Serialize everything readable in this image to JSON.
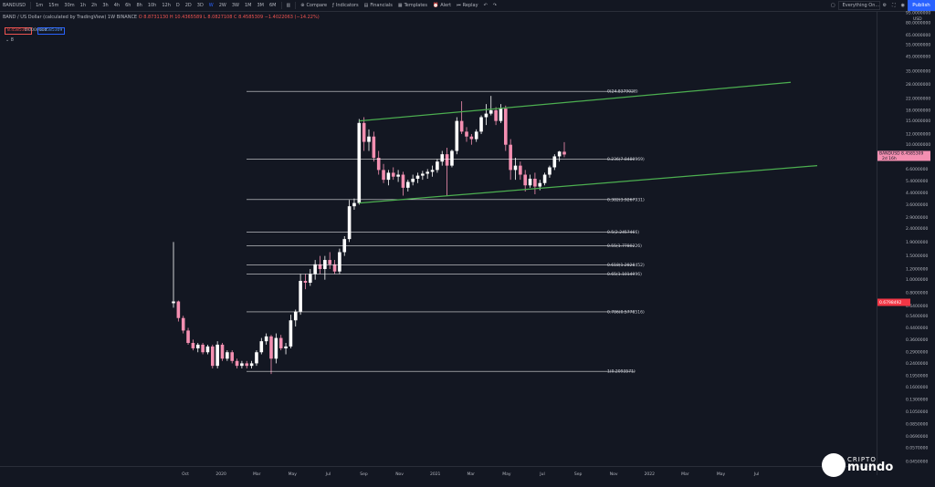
{
  "toolbar": {
    "symbol": "BANDUSD",
    "intervals": [
      "1m",
      "15m",
      "30m",
      "1h",
      "2h",
      "3h",
      "4h",
      "6h",
      "8h",
      "10h",
      "12h",
      "D",
      "2D",
      "3D",
      "W",
      "2W",
      "3W",
      "1M",
      "3M",
      "6M"
    ],
    "active_interval": "W",
    "compare": "Compare",
    "indicators": "Indicators",
    "financials": "Financials",
    "templates": "Templates",
    "alert": "Alert",
    "replay": "Replay",
    "search_placeholder": "Everything On...",
    "publish": "Publish"
  },
  "legend": {
    "title": "BAND / US Dollar (calculated by TradingView)  1W  BINANCE",
    "ohlc": "O 8.8731130  H 10.4365589  L 8.0827108  C 8.4585309  −1.4022063 (−14.22%)",
    "pill_left": "8.4585309",
    "pill_mid": "0.0000000",
    "pill_right": "8.4585309",
    "collapse_label": "8"
  },
  "chart_data": {
    "type": "candlestick",
    "scale": "log",
    "x_labels": [
      "Oct",
      "2020",
      "Mar",
      "May",
      "Jul",
      "Sep",
      "Nov",
      "2021",
      "Mar",
      "May",
      "Jul",
      "Sep",
      "Nov",
      "2022",
      "Mar",
      "May",
      "Jul"
    ],
    "y_labels": [
      "95.0000000",
      "80.0000000",
      "65.0000000",
      "55.0000000",
      "45.0000000",
      "35.0000000",
      "28.0000000",
      "22.0000000",
      "18.0000000",
      "15.0000000",
      "12.0000000",
      "10.0000000",
      "8.0000000",
      "6.6000000",
      "5.4000000",
      "4.4000000",
      "3.6000000",
      "2.9000000",
      "2.4000000",
      "1.9000000",
      "1.5000000",
      "1.2000000",
      "1.0000000",
      "0.8000000",
      "0.6400000",
      "0.5400000",
      "0.4400000",
      "0.3600000",
      "0.2900000",
      "0.2400000",
      "0.1950000",
      "0.1600000",
      "0.1300000",
      "0.1050000",
      "0.0850000",
      "0.0690000",
      "0.0570000",
      "0.0450000"
    ],
    "y_unit": "USD",
    "price_label": "BANDUSD  8.4585309",
    "price_sublabel": "2d 16h",
    "red_label": "0.6798492",
    "fib_levels": [
      {
        "label": "0(24.8379028)"
      },
      {
        "label": "0.236(7.8480969)"
      },
      {
        "label": "0.382(3.9267931)"
      },
      {
        "label": "0.5(2.2457466)"
      },
      {
        "label": "0.55(1.7780226)"
      },
      {
        "label": "0.618(1.2828452)"
      },
      {
        "label": "0.65(1.1014996)"
      },
      {
        "label": "0.786(0.5778516)"
      },
      {
        "label": "1(0.2093571)"
      }
    ],
    "series": [
      {
        "name": "BANDUSD weekly",
        "candles": [
          [
            0.67,
            1.9,
            0.62,
            0.69
          ],
          [
            0.69,
            0.7,
            0.49,
            0.52
          ],
          [
            0.52,
            0.54,
            0.4,
            0.42
          ],
          [
            0.42,
            0.44,
            0.33,
            0.34
          ],
          [
            0.34,
            0.36,
            0.3,
            0.31
          ],
          [
            0.31,
            0.34,
            0.29,
            0.33
          ],
          [
            0.33,
            0.34,
            0.28,
            0.29
          ],
          [
            0.29,
            0.33,
            0.28,
            0.32
          ],
          [
            0.32,
            0.33,
            0.22,
            0.23
          ],
          [
            0.23,
            0.35,
            0.22,
            0.33
          ],
          [
            0.33,
            0.34,
            0.25,
            0.26
          ],
          [
            0.26,
            0.3,
            0.25,
            0.29
          ],
          [
            0.29,
            0.3,
            0.24,
            0.25
          ],
          [
            0.25,
            0.26,
            0.22,
            0.23
          ],
          [
            0.23,
            0.25,
            0.22,
            0.24
          ],
          [
            0.24,
            0.25,
            0.22,
            0.23
          ],
          [
            0.23,
            0.25,
            0.22,
            0.24
          ],
          [
            0.24,
            0.3,
            0.23,
            0.29
          ],
          [
            0.29,
            0.37,
            0.28,
            0.35
          ],
          [
            0.35,
            0.4,
            0.33,
            0.38
          ],
          [
            0.38,
            0.39,
            0.2,
            0.26
          ],
          [
            0.26,
            0.4,
            0.24,
            0.37
          ],
          [
            0.37,
            0.39,
            0.3,
            0.31
          ],
          [
            0.31,
            0.34,
            0.28,
            0.32
          ],
          [
            0.32,
            0.55,
            0.31,
            0.5
          ],
          [
            0.5,
            0.6,
            0.45,
            0.58
          ],
          [
            0.58,
            1.1,
            0.55,
            0.98
          ],
          [
            0.98,
            1.1,
            0.85,
            0.95
          ],
          [
            0.95,
            1.2,
            0.9,
            1.1
          ],
          [
            1.1,
            1.4,
            1.0,
            1.3
          ],
          [
            1.3,
            1.5,
            1.1,
            1.2
          ],
          [
            1.2,
            1.5,
            1.0,
            1.4
          ],
          [
            1.4,
            1.6,
            1.2,
            1.3
          ],
          [
            1.3,
            1.4,
            1.1,
            1.15
          ],
          [
            1.15,
            1.7,
            1.1,
            1.6
          ],
          [
            1.6,
            2.1,
            1.5,
            2.0
          ],
          [
            2.0,
            3.9,
            1.9,
            3.5
          ],
          [
            3.5,
            4.0,
            3.3,
            3.7
          ],
          [
            3.7,
            15.5,
            3.6,
            14.5
          ],
          [
            14.5,
            16.0,
            9.0,
            10.5
          ],
          [
            10.5,
            13.0,
            9.0,
            11.5
          ],
          [
            11.5,
            12.5,
            7.5,
            8.0
          ],
          [
            8.0,
            9.0,
            6.0,
            6.5
          ],
          [
            6.5,
            7.2,
            5.2,
            5.5
          ],
          [
            5.5,
            6.5,
            5.0,
            6.2
          ],
          [
            6.2,
            6.8,
            5.5,
            5.8
          ],
          [
            5.8,
            6.5,
            5.3,
            6.0
          ],
          [
            6.0,
            6.3,
            4.2,
            4.8
          ],
          [
            4.8,
            5.5,
            4.5,
            5.3
          ],
          [
            5.3,
            6.0,
            5.0,
            5.6
          ],
          [
            5.6,
            6.2,
            5.2,
            5.9
          ],
          [
            5.9,
            6.4,
            5.5,
            6.1
          ],
          [
            6.1,
            6.6,
            5.6,
            6.3
          ],
          [
            6.3,
            7.0,
            5.8,
            6.5
          ],
          [
            6.5,
            7.8,
            6.2,
            7.5
          ],
          [
            7.5,
            9.0,
            7.0,
            8.5
          ],
          [
            8.5,
            9.5,
            4.2,
            7.0
          ],
          [
            7.0,
            9.2,
            6.8,
            9.0
          ],
          [
            9.0,
            16.0,
            8.5,
            15.0
          ],
          [
            15.0,
            21.0,
            12.0,
            12.5
          ],
          [
            12.5,
            13.5,
            10.5,
            11.5
          ],
          [
            11.5,
            12.0,
            10.0,
            11.0
          ],
          [
            11.0,
            13.0,
            10.5,
            12.5
          ],
          [
            12.5,
            16.5,
            12.0,
            16.0
          ],
          [
            16.0,
            20.0,
            14.0,
            17.0
          ],
          [
            17.0,
            23.0,
            16.5,
            18.0
          ],
          [
            18.0,
            19.0,
            14.0,
            15.0
          ],
          [
            15.0,
            20.0,
            14.5,
            18.5
          ],
          [
            18.5,
            19.5,
            9.0,
            10.0
          ],
          [
            10.0,
            11.0,
            5.5,
            6.5
          ],
          [
            6.5,
            8.0,
            5.5,
            7.0
          ],
          [
            7.0,
            7.5,
            5.5,
            6.0
          ],
          [
            6.0,
            6.5,
            4.5,
            5.0
          ],
          [
            5.0,
            6.0,
            4.8,
            5.6
          ],
          [
            5.6,
            6.2,
            4.3,
            4.9
          ],
          [
            4.9,
            5.5,
            4.6,
            5.2
          ],
          [
            5.2,
            6.2,
            5.0,
            6.0
          ],
          [
            6.0,
            7.0,
            5.7,
            6.8
          ],
          [
            6.8,
            8.5,
            6.5,
            8.2
          ],
          [
            8.2,
            9.0,
            7.5,
            8.9
          ],
          [
            8.87,
            10.44,
            8.08,
            8.46
          ]
        ]
      }
    ],
    "channel_lines": [
      {
        "from": {
          "date": "Jul 2020",
          "price": 15.0
        },
        "to": {
          "date": "Jun 2022",
          "price": 29.0
        }
      },
      {
        "from": {
          "date": "Jul 2020",
          "price": 3.7
        },
        "to": {
          "date": "Jul 2022",
          "price": 7.0
        }
      }
    ],
    "up_color": "#ffffff",
    "down_color": "#f48fb1",
    "channel_color": "#4caf50",
    "fib_color": "#ffffff"
  },
  "watermark": {
    "top": "CRIPTO",
    "bottom": "mundo"
  }
}
